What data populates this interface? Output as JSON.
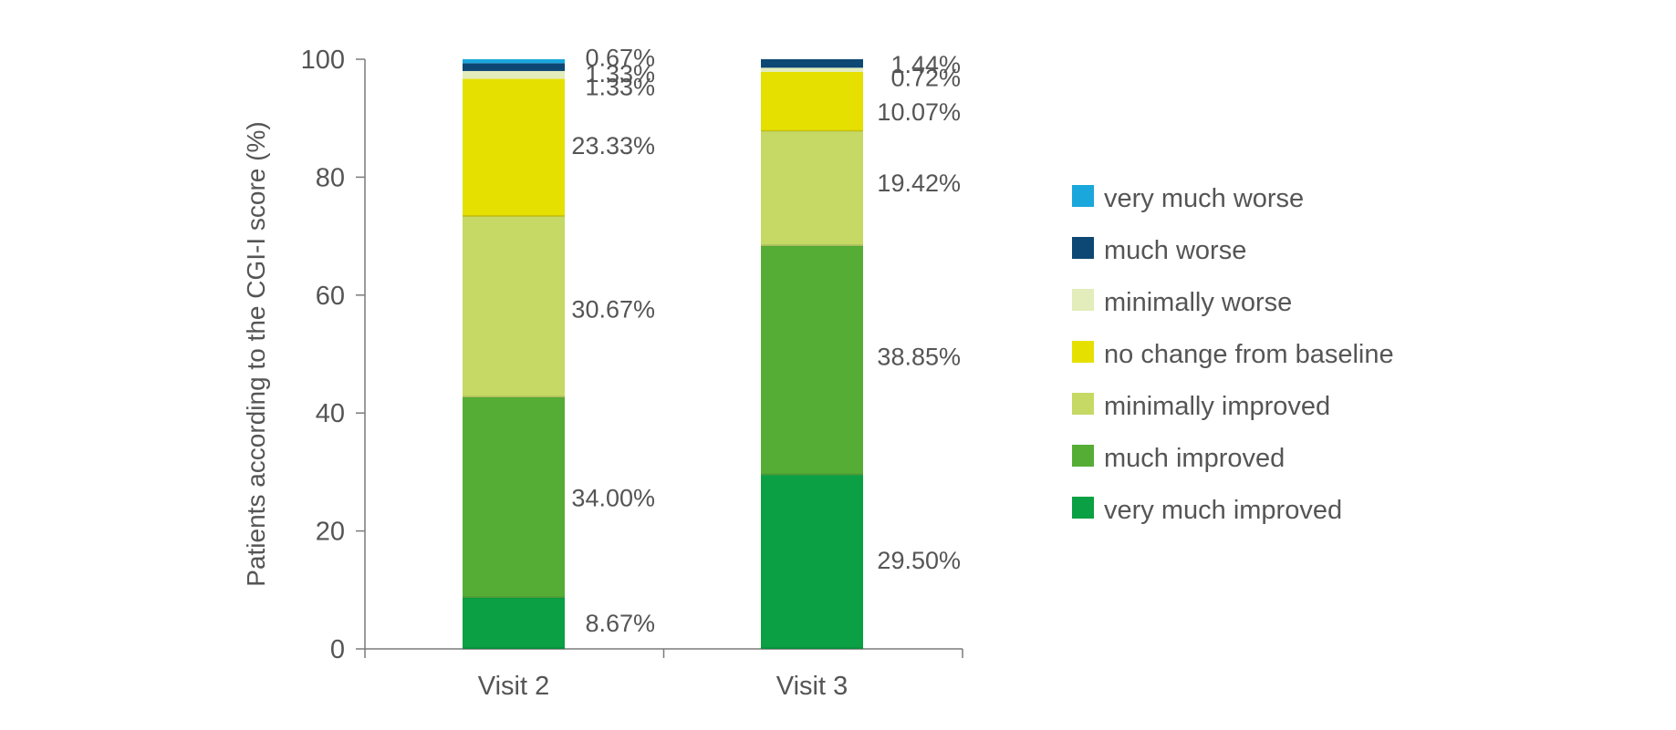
{
  "chart_data": {
    "type": "bar",
    "stacked": true,
    "title": "",
    "xlabel": "",
    "ylabel": "Patients according to the CGI-I score (%)",
    "ylim": [
      0,
      100
    ],
    "yticks": [
      0,
      20,
      40,
      60,
      80,
      100
    ],
    "yticks_text": [
      "0",
      "20",
      "40",
      "60",
      "80",
      "100"
    ],
    "categories": [
      "Visit 2",
      "Visit 3"
    ],
    "series": [
      {
        "name": "very much improved",
        "color": "#0aa043",
        "values": [
          8.67,
          29.5
        ],
        "labels": [
          "8.67%",
          "29.50%"
        ]
      },
      {
        "name": "much improved",
        "color": "#56ad36",
        "values": [
          34.0,
          38.85
        ],
        "labels": [
          "34.00%",
          "38.85%"
        ]
      },
      {
        "name": "minimally improved",
        "color": "#c5d964",
        "values": [
          30.67,
          19.42
        ],
        "labels": [
          "30.67%",
          "19.42%"
        ]
      },
      {
        "name": "no change from baseline",
        "color": "#e6e000",
        "values": [
          23.33,
          10.07
        ],
        "labels": [
          "23.33%",
          "10.07%"
        ]
      },
      {
        "name": "minimally worse",
        "color": "#e3ecbb",
        "values": [
          1.33,
          0.72
        ],
        "labels": [
          "1.33%",
          "0.72%"
        ]
      },
      {
        "name": "much worse",
        "color": "#0d4774",
        "values": [
          1.33,
          1.44
        ],
        "labels": [
          "1.33%",
          "1.44%"
        ]
      },
      {
        "name": "very much worse",
        "color": "#1aa7dc",
        "values": [
          0.67,
          0
        ],
        "labels": [
          "0.67%",
          ""
        ]
      }
    ],
    "legend": {
      "position": "right",
      "items": [
        {
          "name": "very much worse",
          "color": "#1aa7dc"
        },
        {
          "name": "much worse",
          "color": "#0d4774"
        },
        {
          "name": "minimally worse",
          "color": "#e3ecbb"
        },
        {
          "name": "no change from baseline",
          "color": "#e6e000"
        },
        {
          "name": "minimally improved",
          "color": "#c5d964"
        },
        {
          "name": "much improved",
          "color": "#56ad36"
        },
        {
          "name": "very much improved",
          "color": "#0aa043"
        }
      ]
    },
    "grid": false
  }
}
